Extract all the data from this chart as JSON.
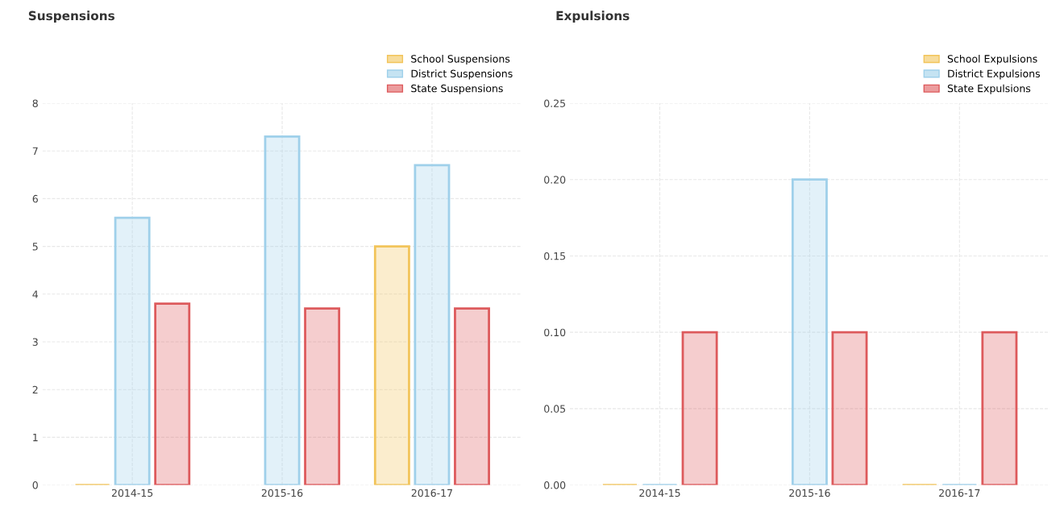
{
  "chart_data": [
    {
      "type": "bar",
      "title": "Suspensions",
      "categories": [
        "2014-15",
        "2015-16",
        "2016-17"
      ],
      "series": [
        {
          "name": "School Suspensions",
          "color": "#f2c45a",
          "values": [
            0,
            null,
            5.0
          ]
        },
        {
          "name": "District Suspensions",
          "color": "#9fd0ea",
          "values": [
            5.6,
            7.3,
            6.7
          ]
        },
        {
          "name": "State Suspensions",
          "color": "#dd5a5c",
          "values": [
            3.8,
            3.7,
            3.7
          ]
        }
      ],
      "ylim": [
        0,
        8
      ],
      "yticks": [
        0,
        1,
        2,
        3,
        4,
        5,
        6,
        7,
        8
      ],
      "grid": true,
      "legend": "top right"
    },
    {
      "type": "bar",
      "title": "Expulsions",
      "categories": [
        "2014-15",
        "2015-16",
        "2016-17"
      ],
      "series": [
        {
          "name": "School Expulsions",
          "color": "#f2c45a",
          "values": [
            0,
            null,
            0
          ]
        },
        {
          "name": "District Expulsions",
          "color": "#9fd0ea",
          "values": [
            0,
            0.2,
            0
          ]
        },
        {
          "name": "State Expulsions",
          "color": "#dd5a5c",
          "values": [
            0.1,
            0.1,
            0.1
          ]
        }
      ],
      "ylim": [
        0,
        0.25
      ],
      "yticks": [
        {
          "value": 0,
          "label": "0.00"
        },
        {
          "value": 0.05,
          "label": "0.05"
        },
        {
          "value": 0.1,
          "label": "0.10"
        },
        {
          "value": 0.15,
          "label": "0.15"
        },
        {
          "value": 0.2,
          "label": "0.20"
        },
        {
          "value": 0.25,
          "label": "0.25"
        }
      ],
      "grid": true,
      "legend": "top right"
    }
  ]
}
